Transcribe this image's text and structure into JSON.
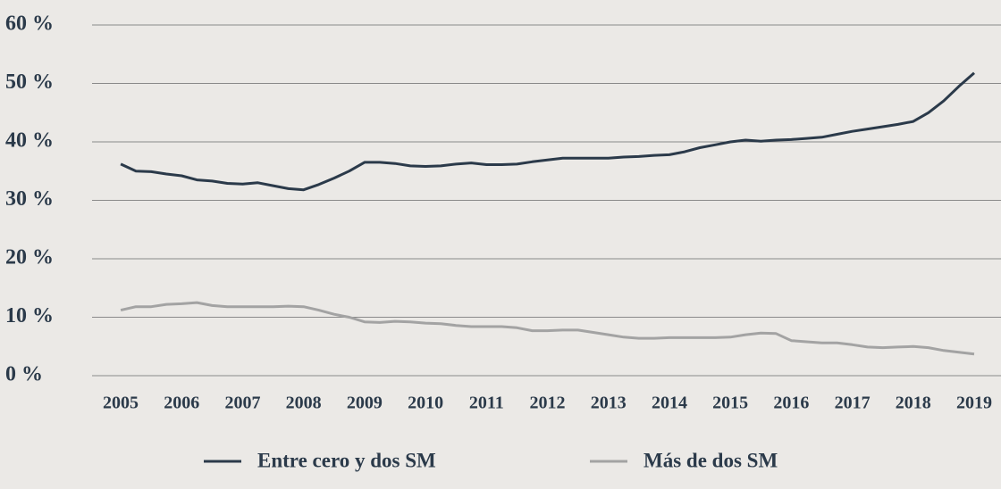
{
  "chart_data": {
    "type": "line",
    "x": [
      2005,
      2005.25,
      2005.5,
      2005.75,
      2006,
      2006.25,
      2006.5,
      2006.75,
      2007,
      2007.25,
      2007.5,
      2007.75,
      2008,
      2008.25,
      2008.5,
      2008.75,
      2009,
      2009.25,
      2009.5,
      2009.75,
      2010,
      2010.25,
      2010.5,
      2010.75,
      2011,
      2011.25,
      2011.5,
      2011.75,
      2012,
      2012.25,
      2012.5,
      2012.75,
      2013,
      2013.25,
      2013.5,
      2013.75,
      2014,
      2014.25,
      2014.5,
      2014.75,
      2015,
      2015.25,
      2015.5,
      2015.75,
      2016,
      2016.25,
      2016.5,
      2016.75,
      2017,
      2017.25,
      2017.5,
      2017.75,
      2018,
      2018.25,
      2018.5,
      2018.75,
      2019
    ],
    "series": [
      {
        "name": "Entre cero y dos SM",
        "color": "#2b3a4a",
        "values": [
          36.2,
          35,
          34.9,
          34.5,
          34.2,
          33.5,
          33.3,
          32.9,
          32.8,
          33.0,
          32.5,
          32.0,
          31.8,
          32.7,
          33.8,
          35.0,
          36.5,
          36.5,
          36.3,
          35.9,
          35.8,
          35.9,
          36.2,
          36.4,
          36.1,
          36.1,
          36.2,
          36.6,
          36.9,
          37.2,
          37.2,
          37.2,
          37.2,
          37.4,
          37.5,
          37.7,
          37.8,
          38.3,
          39.0,
          39.5,
          40.0,
          40.3,
          40.1,
          40.3,
          40.4,
          40.6,
          40.8,
          41.3,
          41.8,
          42.2,
          42.6,
          43.0,
          43.5,
          45.0,
          47.0,
          49.5,
          51.8
        ]
      },
      {
        "name": "Más de dos SM",
        "color": "#a3a3a3",
        "values": [
          11.2,
          11.8,
          11.8,
          12.2,
          12.3,
          12.5,
          12.0,
          11.8,
          11.8,
          11.8,
          11.8,
          11.9,
          11.8,
          11.2,
          10.5,
          10.0,
          9.2,
          9.1,
          9.3,
          9.2,
          9.0,
          8.9,
          8.6,
          8.4,
          8.4,
          8.4,
          8.2,
          7.7,
          7.7,
          7.8,
          7.8,
          7.4,
          7.0,
          6.6,
          6.4,
          6.4,
          6.5,
          6.5,
          6.5,
          6.5,
          6.6,
          7.0,
          7.3,
          7.2,
          6.0,
          5.8,
          5.6,
          5.6,
          5.3,
          4.9,
          4.8,
          4.9,
          5.0,
          4.8,
          4.3,
          4.0,
          3.7
        ]
      }
    ],
    "xlim": [
      2004.53,
      2019.44
    ],
    "xticks": [
      2005,
      2006,
      2007,
      2008,
      2009,
      2010,
      2011,
      2012,
      2013,
      2014,
      2015,
      2016,
      2017,
      2018,
      2019
    ],
    "ylim": [
      0,
      60
    ],
    "yticks": [
      {
        "value": 0,
        "label": "0 %"
      },
      {
        "value": 10,
        "label": "10 %"
      },
      {
        "value": 20,
        "label": "20 %"
      },
      {
        "value": 30,
        "label": "30 %"
      },
      {
        "value": 40,
        "label": "40 %"
      },
      {
        "value": 50,
        "label": "50 %"
      },
      {
        "value": 60,
        "label": "60 %"
      }
    ],
    "grid": true,
    "legend": "bottom"
  }
}
